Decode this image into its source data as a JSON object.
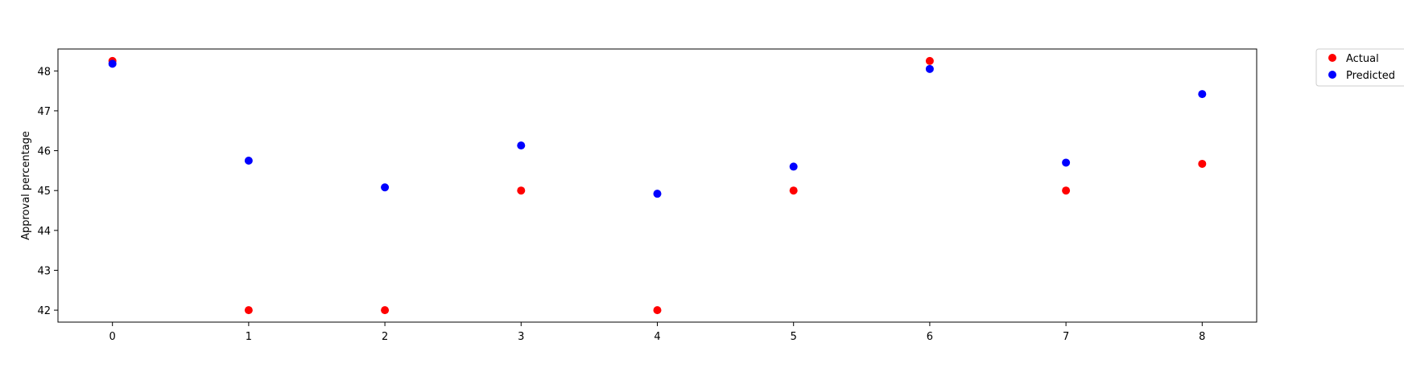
{
  "chart_data": {
    "type": "scatter",
    "title": "",
    "xlabel": "",
    "ylabel": "Approval percentage",
    "x": [
      0,
      1,
      2,
      3,
      4,
      5,
      6,
      7,
      8
    ],
    "xticks": [
      0,
      1,
      2,
      3,
      4,
      5,
      6,
      7,
      8
    ],
    "yticks": [
      42,
      43,
      44,
      45,
      46,
      47,
      48
    ],
    "xlim": [
      -0.4,
      8.4
    ],
    "ylim": [
      41.7,
      48.55
    ],
    "grid": false,
    "legend_position": "outside-top-right",
    "series": [
      {
        "name": "Actual",
        "color": "#ff0000",
        "values": [
          48.25,
          42.0,
          42.0,
          45.0,
          42.0,
          45.0,
          48.25,
          45.0,
          45.67
        ]
      },
      {
        "name": "Predicted",
        "color": "#0000ff",
        "values": [
          48.18,
          45.75,
          45.08,
          46.13,
          44.92,
          45.6,
          48.05,
          45.7,
          47.42
        ]
      }
    ]
  }
}
